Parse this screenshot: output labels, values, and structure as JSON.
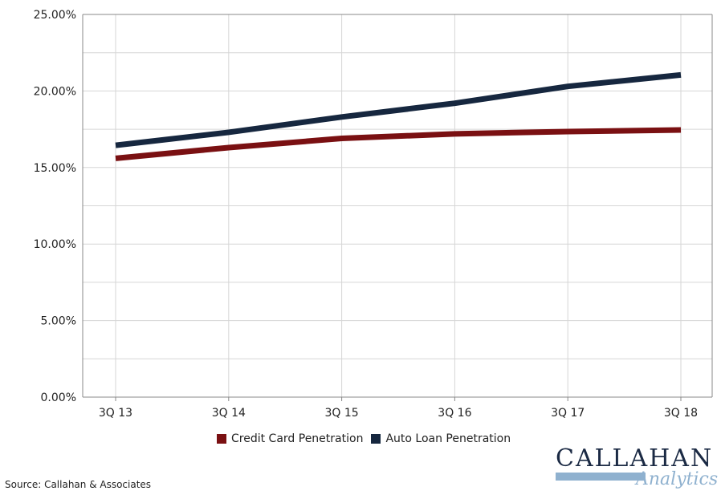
{
  "chart_data": {
    "type": "line",
    "categories": [
      "3Q 13",
      "3Q 14",
      "3Q 15",
      "3Q 16",
      "3Q 17",
      "3Q 18"
    ],
    "series": [
      {
        "name": "Credit Card Penetration",
        "color": "#7a1012",
        "values": [
          15.6,
          16.3,
          16.9,
          17.2,
          17.35,
          17.45
        ]
      },
      {
        "name": "Auto Loan Penetration",
        "color": "#16273f",
        "values": [
          16.45,
          17.3,
          18.3,
          19.2,
          20.3,
          21.05
        ]
      }
    ],
    "yticks": [
      "0.00%",
      "5.00%",
      "10.00%",
      "15.00%",
      "20.00%",
      "25.00%"
    ],
    "ylim": [
      0,
      25
    ],
    "grid": true,
    "legend_position": "bottom"
  },
  "source": "Source: Callahan & Associates",
  "logo": {
    "word": "CALLAHAN",
    "sub": "Analytics"
  }
}
